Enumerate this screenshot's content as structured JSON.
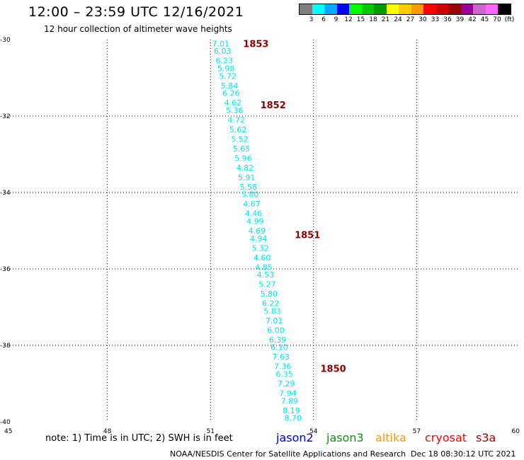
{
  "header": {
    "title": "12:00 – 23:59 UTC 12/16/2021",
    "subtitle": "12 hour collection of altimeter wave heights"
  },
  "legend": {
    "colors": [
      "#7f7f7f",
      "#00ffff",
      "#00aaff",
      "#0000ff",
      "#00ff00",
      "#00cc00",
      "#009900",
      "#ffff00",
      "#ffcc00",
      "#ff9900",
      "#ff0000",
      "#cc0000",
      "#990000",
      "#990099",
      "#cc66cc",
      "#ff66ff",
      "#000000"
    ],
    "labels": [
      "3",
      "6",
      "9",
      "12",
      "15",
      "18",
      "21",
      "24",
      "27",
      "30",
      "33",
      "36",
      "39",
      "42",
      "45",
      "70",
      "(ft)"
    ]
  },
  "map": {
    "x_ticks": [
      "45",
      "48",
      "51",
      "54",
      "57",
      "60"
    ],
    "y_ticks": [
      "-30",
      "-32",
      "-34",
      "-36",
      "-38",
      "-40"
    ],
    "lon_range": [
      45,
      60
    ],
    "lat_range": [
      -40,
      -30
    ],
    "time_color": "#8b0000",
    "wave_color": "#00e5ee",
    "times": [
      {
        "lat": -30.1,
        "lon": 51.95,
        "text": "1853"
      },
      {
        "lat": -31.7,
        "lon": 52.45,
        "text": "1852"
      },
      {
        "lat": -35.1,
        "lon": 53.45,
        "text": "1851"
      },
      {
        "lat": -38.6,
        "lon": 54.2,
        "text": "1850"
      }
    ],
    "wave_heights": [
      {
        "lat": -30.1,
        "lon": 51.05,
        "text": "7.01"
      },
      {
        "lat": -30.3,
        "lon": 51.1,
        "text": "6.03"
      },
      {
        "lat": -30.55,
        "lon": 51.15,
        "text": "6.23"
      },
      {
        "lat": -30.75,
        "lon": 51.2,
        "text": "5.98"
      },
      {
        "lat": -30.95,
        "lon": 51.25,
        "text": "5.72"
      },
      {
        "lat": -31.2,
        "lon": 51.3,
        "text": "5.84"
      },
      {
        "lat": -31.4,
        "lon": 51.35,
        "text": "6.26"
      },
      {
        "lat": -31.65,
        "lon": 51.4,
        "text": "4.62"
      },
      {
        "lat": -31.85,
        "lon": 51.45,
        "text": "5.36"
      },
      {
        "lat": -32.1,
        "lon": 51.5,
        "text": "4.72"
      },
      {
        "lat": -32.35,
        "lon": 51.55,
        "text": "5.62"
      },
      {
        "lat": -32.6,
        "lon": 51.6,
        "text": "5.52"
      },
      {
        "lat": -32.85,
        "lon": 51.65,
        "text": "5.65"
      },
      {
        "lat": -33.1,
        "lon": 51.7,
        "text": "5.96"
      },
      {
        "lat": -33.35,
        "lon": 51.75,
        "text": "4.82"
      },
      {
        "lat": -33.6,
        "lon": 51.8,
        "text": "5.91"
      },
      {
        "lat": -33.85,
        "lon": 51.85,
        "text": "5.58"
      },
      {
        "lat": -34.05,
        "lon": 51.9,
        "text": "5.80"
      },
      {
        "lat": -34.3,
        "lon": 51.95,
        "text": "4.67"
      },
      {
        "lat": -34.55,
        "lon": 52.0,
        "text": "4.46"
      },
      {
        "lat": -34.75,
        "lon": 52.05,
        "text": "4.99"
      },
      {
        "lat": -35.0,
        "lon": 52.1,
        "text": "4.69"
      },
      {
        "lat": -35.2,
        "lon": 52.15,
        "text": "4.94"
      },
      {
        "lat": -35.45,
        "lon": 52.2,
        "text": "5.32"
      },
      {
        "lat": -35.7,
        "lon": 52.25,
        "text": "4.60"
      },
      {
        "lat": -35.95,
        "lon": 52.3,
        "text": "4.85"
      },
      {
        "lat": -36.15,
        "lon": 52.35,
        "text": "4.53"
      },
      {
        "lat": -36.4,
        "lon": 52.4,
        "text": "5.27"
      },
      {
        "lat": -36.65,
        "lon": 52.45,
        "text": "5.80"
      },
      {
        "lat": -36.9,
        "lon": 52.5,
        "text": "6.22"
      },
      {
        "lat": -37.1,
        "lon": 52.55,
        "text": "5.83"
      },
      {
        "lat": -37.35,
        "lon": 52.6,
        "text": "7.01"
      },
      {
        "lat": -37.6,
        "lon": 52.65,
        "text": "6.00"
      },
      {
        "lat": -37.85,
        "lon": 52.7,
        "text": "6.39"
      },
      {
        "lat": -38.05,
        "lon": 52.75,
        "text": "6.10"
      },
      {
        "lat": -38.3,
        "lon": 52.8,
        "text": "7.63"
      },
      {
        "lat": -38.55,
        "lon": 52.85,
        "text": "7.36"
      },
      {
        "lat": -38.75,
        "lon": 52.9,
        "text": "6.35"
      },
      {
        "lat": -39.0,
        "lon": 52.95,
        "text": "7.29"
      },
      {
        "lat": -39.25,
        "lon": 53.0,
        "text": "7.94"
      },
      {
        "lat": -39.45,
        "lon": 53.05,
        "text": "7.89"
      },
      {
        "lat": -39.7,
        "lon": 53.1,
        "text": "8.19"
      },
      {
        "lat": -39.9,
        "lon": 53.15,
        "text": "8.70"
      }
    ]
  },
  "footer": {
    "note": "note: 1) Time is in UTC; 2) SWH is in feet",
    "satellites": [
      {
        "name": "jason2",
        "color": "#0000cc"
      },
      {
        "name": "jason3",
        "color": "#009900"
      },
      {
        "name": "altika",
        "color": "#ff9900"
      },
      {
        "name": "cryosat",
        "color": "#ff0000"
      },
      {
        "name": "s3a",
        "color": "#990000"
      }
    ],
    "credit": "NOAA/NESDIS Center for Satellite Applications and Research",
    "timestamp": "Dec 18 08:30:12 UTC 2021"
  }
}
